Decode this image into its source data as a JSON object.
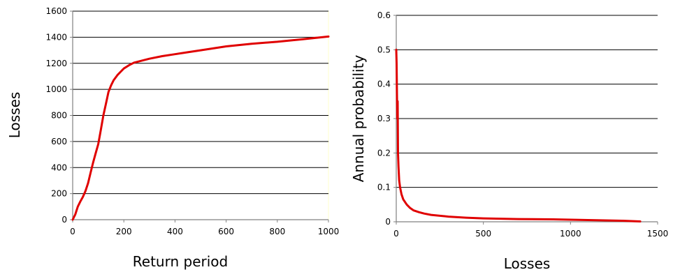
{
  "chart_data": [
    {
      "type": "line",
      "xlabel": "Return period",
      "ylabel": "Losses",
      "xlim": [
        0,
        1000
      ],
      "ylim": [
        0,
        1600
      ],
      "xticks": [
        0,
        200,
        400,
        600,
        800,
        1000
      ],
      "yticks": [
        0,
        200,
        400,
        600,
        800,
        1000,
        1200,
        1400,
        1600
      ],
      "grid": "horizontal",
      "plot_background": "#ffffff",
      "plot_border_color": "#ffffcc",
      "series": [
        {
          "color": "#e00000",
          "x": [
            0,
            10,
            20,
            30,
            40,
            50,
            60,
            70,
            80,
            90,
            100,
            110,
            120,
            130,
            140,
            150,
            160,
            175,
            190,
            200,
            220,
            240,
            260,
            300,
            350,
            400,
            450,
            500,
            600,
            700,
            800,
            900,
            1000
          ],
          "y": [
            0,
            40,
            100,
            140,
            175,
            220,
            280,
            360,
            440,
            510,
            580,
            690,
            800,
            890,
            980,
            1030,
            1070,
            1110,
            1140,
            1160,
            1185,
            1205,
            1215,
            1235,
            1255,
            1270,
            1285,
            1300,
            1330,
            1350,
            1365,
            1385,
            1405
          ]
        }
      ]
    },
    {
      "type": "line",
      "xlabel": "Losses",
      "ylabel": "Annual probability",
      "xlim": [
        0,
        1500
      ],
      "ylim": [
        0,
        0.6
      ],
      "xticks": [
        0,
        500,
        1000,
        1500
      ],
      "yticks": [
        0,
        0.1,
        0.2,
        0.3,
        0.4,
        0.5,
        0.6
      ],
      "grid": "horizontal",
      "plot_background": "#ffffff",
      "series": [
        {
          "color": "#e00000",
          "x": [
            0,
            2,
            4,
            6,
            8,
            10,
            13,
            17,
            22,
            30,
            40,
            60,
            80,
            100,
            130,
            160,
            200,
            300,
            400,
            500,
            700,
            900,
            1100,
            1300,
            1400
          ],
          "y": [
            0.5,
            0.46,
            0.37,
            0.3,
            0.35,
            0.2,
            0.16,
            0.12,
            0.1,
            0.08,
            0.065,
            0.05,
            0.04,
            0.033,
            0.028,
            0.024,
            0.02,
            0.015,
            0.012,
            0.01,
            0.008,
            0.007,
            0.005,
            0.003,
            0.001
          ]
        }
      ]
    }
  ]
}
